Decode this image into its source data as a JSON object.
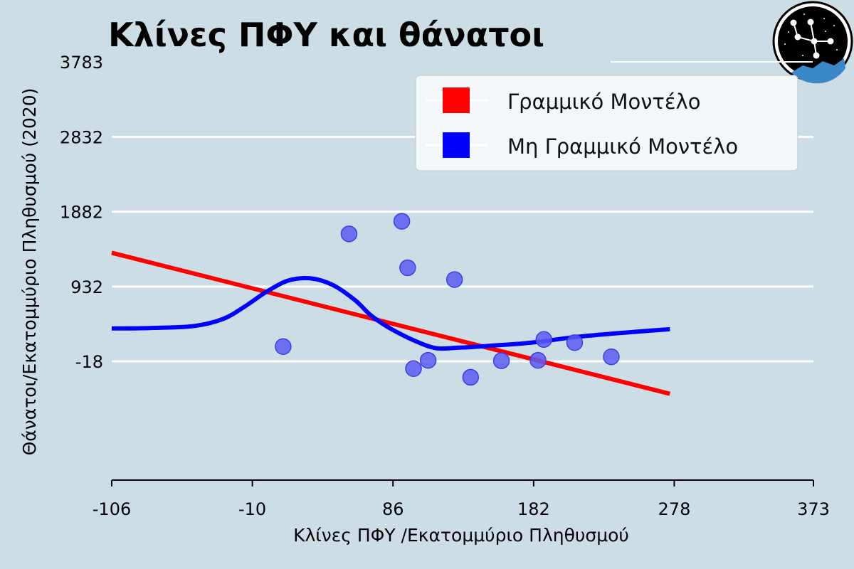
{
  "chart_data": {
    "type": "scatter",
    "title": "Κλίνες ΠΦΥ και θάνατοι",
    "xlabel": "Κλίνες ΠΦΥ /Εκατομμύριο Πληθυσμού",
    "ylabel": "Θάνατοι/Εκατομμύριο Πληθυσμού (2020)",
    "xlim": [
      -106,
      373
    ],
    "ylim": [
      -1525,
      3783
    ],
    "x_ticks": [
      "-106",
      "-10",
      "86",
      "182",
      "278",
      "373"
    ],
    "y_ticks": [
      "-18",
      "932",
      "1882",
      "2832",
      "3783"
    ],
    "grid": "horizontal",
    "legend_position": "top-right",
    "points": {
      "color": "#5c5cf2",
      "x": [
        11,
        56,
        92,
        96,
        100,
        110,
        128,
        139,
        160,
        185,
        189,
        210,
        235
      ],
      "y": [
        170,
        1600,
        1760,
        1170,
        -110,
        -5,
        1020,
        -220,
        -10,
        -5,
        260,
        220,
        40
      ]
    },
    "series": [
      {
        "name": "Γραμμικό Μοντέλο",
        "type": "line",
        "color": "#ff0000",
        "x": [
          -106,
          275
        ],
        "y": [
          1360,
          -430
        ]
      },
      {
        "name": "Μη Γραμμικό Μοντέλο",
        "type": "line",
        "color": "#0000ff",
        "x": [
          -106,
          -80,
          -50,
          -30,
          -15,
          0,
          15,
          30,
          45,
          60,
          70,
          78,
          86,
          100,
          115,
          130,
          145,
          160,
          175,
          190,
          210,
          240,
          260,
          275
        ],
        "y": [
          400,
          405,
          430,
          520,
          680,
          870,
          1010,
          1035,
          950,
          760,
          580,
          470,
          380,
          250,
          150,
          155,
          170,
          190,
          210,
          240,
          290,
          340,
          370,
          390
        ]
      }
    ]
  }
}
